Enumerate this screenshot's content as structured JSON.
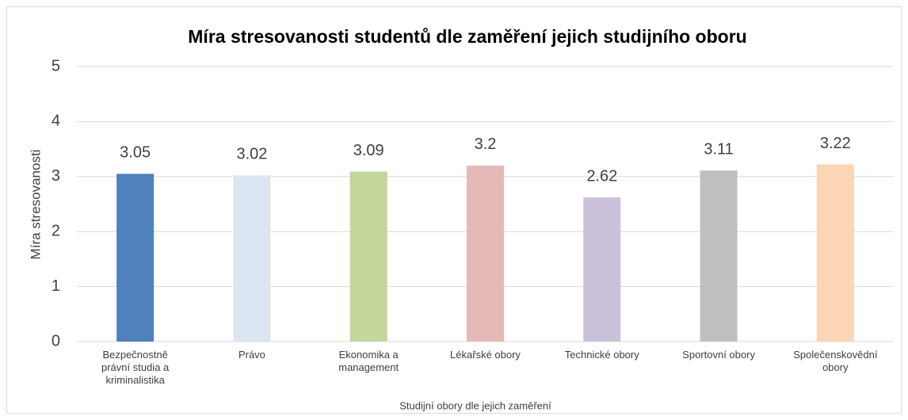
{
  "chart_data": {
    "type": "bar",
    "title": "Míra stresovanosti studentů dle zaměření jejich studijního oboru",
    "y_label": "Míra stresovanosti",
    "x_label": "Studijní obory dle jejich zaměření",
    "categories": [
      "Bezpečnostně právní studia a kriminalistika",
      "Právo",
      "Ekonomika a management",
      "Lékařské obory",
      "Technické obory",
      "Sportovní obory",
      "Společenskovědní obory"
    ],
    "values": [
      3.05,
      3.02,
      3.09,
      3.2,
      2.62,
      3.11,
      3.22
    ],
    "colors": [
      "#4f81bd",
      "#dce6f2",
      "#c3d69b",
      "#e6b9b8",
      "#ccc1da",
      "#bfbfbf",
      "#fcd5b5"
    ],
    "ylim": [
      0,
      5
    ],
    "yticks": [
      0,
      1,
      2,
      3,
      4,
      5
    ],
    "grid": true
  }
}
